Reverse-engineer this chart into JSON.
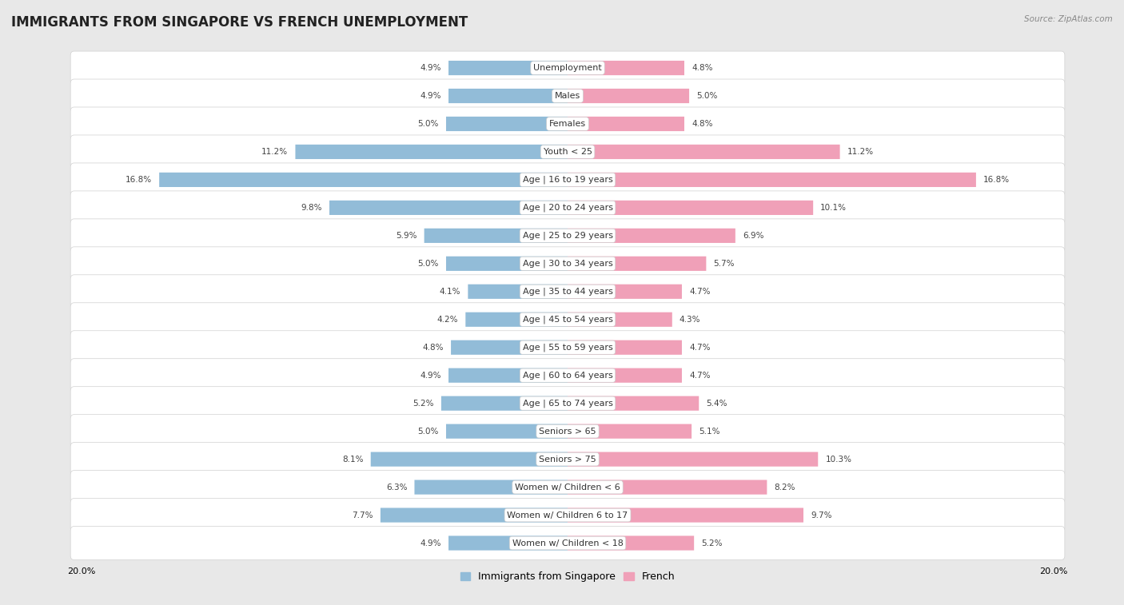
{
  "title": "IMMIGRANTS FROM SINGAPORE VS FRENCH UNEMPLOYMENT",
  "source": "Source: ZipAtlas.com",
  "categories": [
    "Unemployment",
    "Males",
    "Females",
    "Youth < 25",
    "Age | 16 to 19 years",
    "Age | 20 to 24 years",
    "Age | 25 to 29 years",
    "Age | 30 to 34 years",
    "Age | 35 to 44 years",
    "Age | 45 to 54 years",
    "Age | 55 to 59 years",
    "Age | 60 to 64 years",
    "Age | 65 to 74 years",
    "Seniors > 65",
    "Seniors > 75",
    "Women w/ Children < 6",
    "Women w/ Children 6 to 17",
    "Women w/ Children < 18"
  ],
  "singapore_values": [
    4.9,
    4.9,
    5.0,
    11.2,
    16.8,
    9.8,
    5.9,
    5.0,
    4.1,
    4.2,
    4.8,
    4.9,
    5.2,
    5.0,
    8.1,
    6.3,
    7.7,
    4.9
  ],
  "french_values": [
    4.8,
    5.0,
    4.8,
    11.2,
    16.8,
    10.1,
    6.9,
    5.7,
    4.7,
    4.3,
    4.7,
    4.7,
    5.4,
    5.1,
    10.3,
    8.2,
    9.7,
    5.2
  ],
  "singapore_color": "#92bcd8",
  "french_color": "#f0a0b8",
  "singapore_label": "Immigrants from Singapore",
  "french_label": "French",
  "max_value": 20.0,
  "chart_bg": "#e8e8e8",
  "row_bg": "#ffffff",
  "row_border": "#d0d0d0",
  "title_fontsize": 12,
  "label_fontsize": 8.0,
  "value_fontsize": 7.5,
  "legend_fontsize": 9
}
